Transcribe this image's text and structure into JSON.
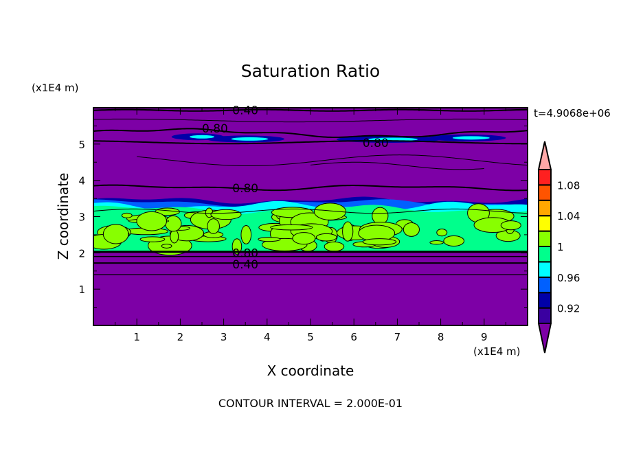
{
  "chart_data": {
    "type": "heatmap",
    "title": "Saturation Ratio",
    "xlabel": "X coordinate",
    "ylabel": "Z coordinate",
    "x_unit_label": "(x1E4 m)",
    "y_unit_label": "(x1E4 m)",
    "xlim": [
      0,
      10
    ],
    "ylim": [
      0,
      6
    ],
    "x_ticks": [
      "1",
      "2",
      "3",
      "4",
      "5",
      "6",
      "7",
      "8",
      "9"
    ],
    "y_ticks": [
      "1",
      "2",
      "3",
      "4",
      "5"
    ],
    "time_label": "t=4.9068e+06",
    "footer": "CONTOUR INTERVAL = 2.000E-01",
    "contour_labels": [
      {
        "text": "0.40",
        "x": 3.5,
        "y": 5.95
      },
      {
        "text": "0.80",
        "x": 2.8,
        "y": 5.45
      },
      {
        "text": "0.80",
        "x": 6.5,
        "y": 5.05
      },
      {
        "text": "0.80",
        "x": 3.5,
        "y": 3.8
      },
      {
        "text": "0.80",
        "x": 3.5,
        "y": 2.02
      },
      {
        "text": "0.40",
        "x": 3.5,
        "y": 1.7
      }
    ],
    "colorbar": {
      "levels": [
        0.9,
        0.92,
        0.94,
        0.96,
        0.98,
        1.0,
        1.02,
        1.04,
        1.06,
        1.08,
        1.1
      ],
      "tick_labels": [
        {
          "value": 1.08,
          "text": "1.08"
        },
        {
          "value": 1.04,
          "text": "1.04"
        },
        {
          "value": 1.0,
          "text": "1"
        },
        {
          "value": 0.96,
          "text": "0.96"
        },
        {
          "value": 0.92,
          "text": "0.92"
        }
      ],
      "colors": [
        "#3a00a0",
        "#0000a8",
        "#0060ff",
        "#00ffff",
        "#00ff8c",
        "#88ff00",
        "#ffff00",
        "#ffa800",
        "#ff5400",
        "#ff2020"
      ],
      "under_color": "#7d00a6",
      "over_color": "#ffa8a8"
    }
  }
}
